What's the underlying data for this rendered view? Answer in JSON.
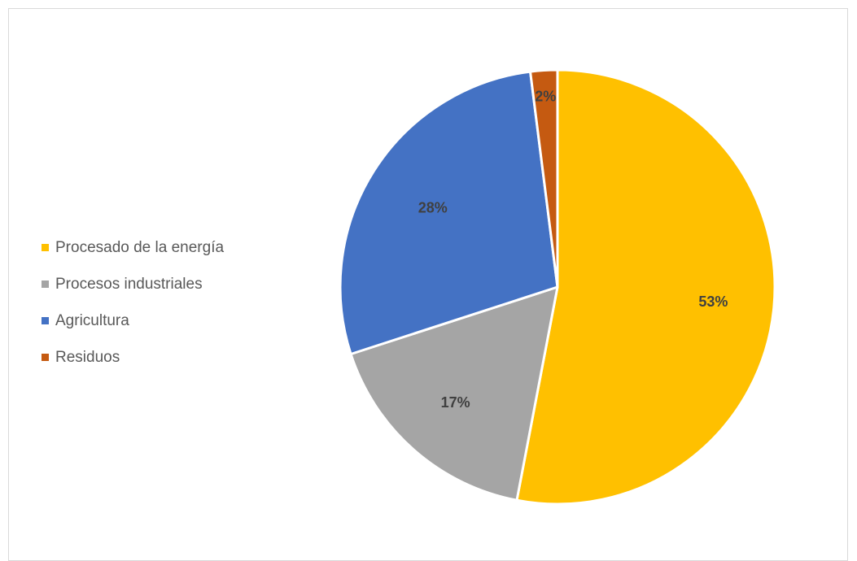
{
  "chart_data": {
    "type": "pie",
    "title": "",
    "categories": [
      "Procesado de la energía",
      "Procesos industriales",
      "Agricultura",
      "Residuos"
    ],
    "values": [
      53,
      17,
      28,
      2
    ],
    "labels": [
      "53%",
      "17%",
      "28%",
      "2%"
    ],
    "colors": [
      "#FFC000",
      "#A5A5A5",
      "#4472C4",
      "#C55A11"
    ],
    "legend_position": "left",
    "start_angle_degrees": 0,
    "direction": "clockwise"
  }
}
